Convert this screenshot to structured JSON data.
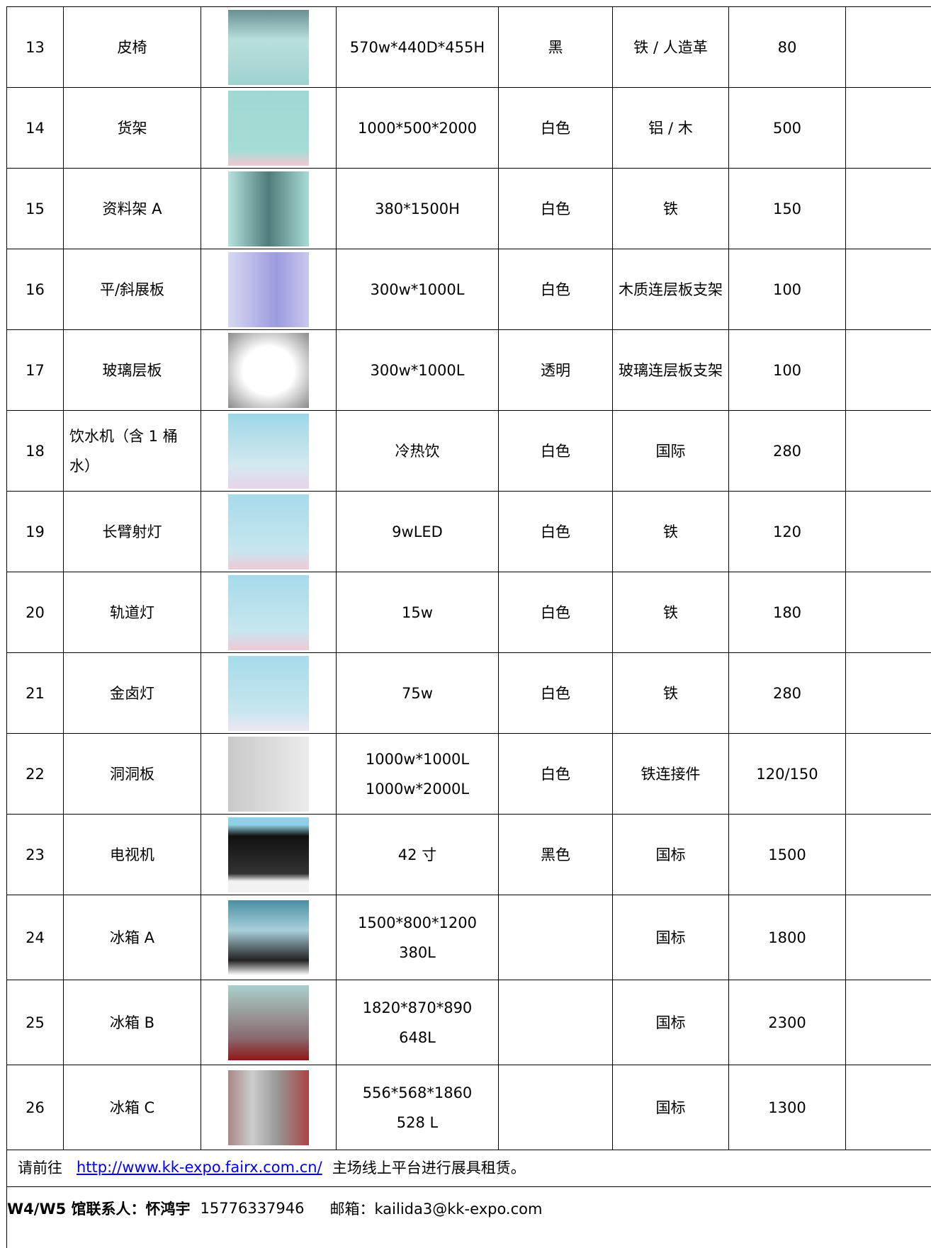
{
  "table": {
    "rows": [
      {
        "no": "13",
        "name": "皮椅",
        "spec": "570w*440D*455H",
        "color": "黑",
        "material": "铁 / 人造革",
        "price": "80"
      },
      {
        "no": "14",
        "name": "货架",
        "spec": "1000*500*2000",
        "color": "白色",
        "material": "铝 / 木",
        "price": "500"
      },
      {
        "no": "15",
        "name": "资料架 A",
        "spec": "380*1500H",
        "color": "白色",
        "material": "铁",
        "price": "150"
      },
      {
        "no": "16",
        "name": "平/斜展板",
        "spec": "300w*1000L",
        "color": "白色",
        "material": "木质连层板支架",
        "price": "100"
      },
      {
        "no": "17",
        "name": "玻璃层板",
        "spec": "300w*1000L",
        "color": "透明",
        "material": "玻璃连层板支架",
        "price": "100"
      },
      {
        "no": "18",
        "name": "饮水机（含 1 桶水）",
        "spec": "冷热饮",
        "color": "白色",
        "material": "国际",
        "price": "280"
      },
      {
        "no": "19",
        "name": "长臂射灯",
        "spec": "9wLED",
        "color": "白色",
        "material": "铁",
        "price": "120"
      },
      {
        "no": "20",
        "name": "轨道灯",
        "spec": "15w",
        "color": "白色",
        "material": "铁",
        "price": "180"
      },
      {
        "no": "21",
        "name": "金卤灯",
        "spec": "75w",
        "color": "白色",
        "material": "铁",
        "price": "280"
      },
      {
        "no": "22",
        "name": "洞洞板",
        "spec": [
          "1000w*1000L",
          "1000w*2000L"
        ],
        "color": "白色",
        "material": "铁连接件",
        "price": "120/150"
      },
      {
        "no": "23",
        "name": "电视机",
        "spec": "42 寸",
        "color": "黑色",
        "material": "国标",
        "price": "1500"
      },
      {
        "no": "24",
        "name": "冰箱 A",
        "spec": [
          "1500*800*1200",
          "380L"
        ],
        "material": "国标",
        "price": "1800"
      },
      {
        "no": "25",
        "name": "冰箱 B",
        "spec": [
          "1820*870*890",
          "648L"
        ],
        "material": "国标",
        "price": "2300"
      },
      {
        "no": "26",
        "name": "冰箱 C",
        "spec": [
          "556*568*1860",
          "528 L"
        ],
        "material": "国标",
        "price": "1300"
      }
    ]
  },
  "footer": {
    "line1": {
      "prefix": "请前往",
      "link": "http://www.kk-expo.fairx.com.cn/",
      "suffix": "主场线上平台进行展具租赁。"
    },
    "line2": {
      "label": "W4/W5 馆联系人：怀鸿宇",
      "phone": "15776337946",
      "email": "邮箱：kailida3@kk-expo.com"
    }
  }
}
